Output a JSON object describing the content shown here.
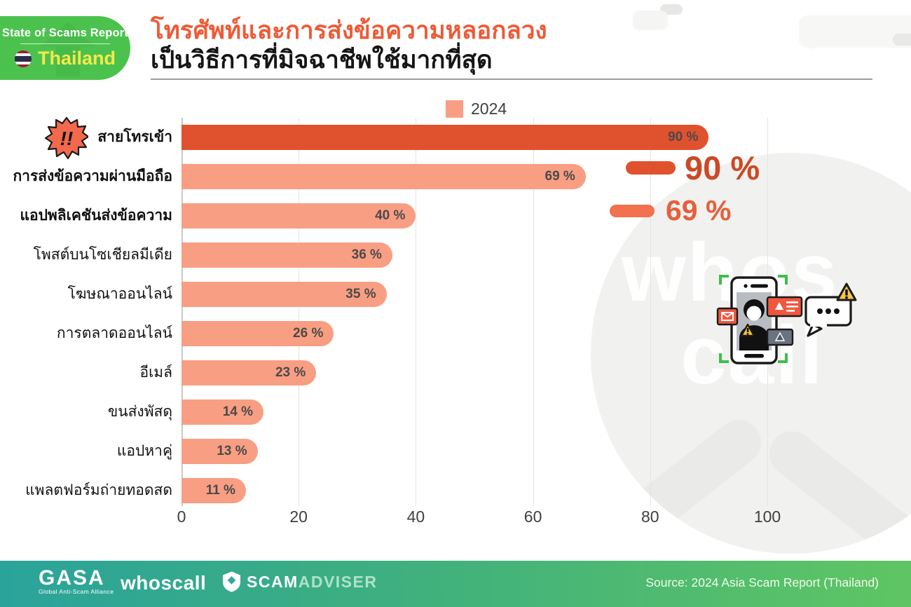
{
  "header": {
    "badge_line1": "State of Scams Report",
    "badge_country": "Thailand",
    "title_line1": "โทรศัพท์และการส่งข้อความหลอกลวง",
    "title_line2": "เป็นวิธีการที่มิจฉาชีพใช้มากที่สุด"
  },
  "alert_icon_text": "!!",
  "watermark": {
    "line1": "whos",
    "line2": "call"
  },
  "chart_data": {
    "type": "bar",
    "orientation": "horizontal",
    "title": "โทรศัพท์และการส่งข้อความหลอกลวง เป็นวิธีการที่มิจฉาชีพใช้มากที่สุด",
    "legend": [
      "2024"
    ],
    "legend_position": "top",
    "grid": true,
    "categories": [
      "สายโทรเข้า",
      "การส่งข้อความผ่านมือถือ",
      "แอปพลิเคชันส่งข้อความ",
      "โพสต์บนโซเชียลมีเดีย",
      "โฆษณาออนไลน์",
      "การตลาดออนไลน์",
      "อีเมล์",
      "ขนส่งพัสดุ",
      "แอปหาคู่",
      "แพลตฟอร์มถ่ายทอดสด"
    ],
    "values": [
      90,
      69,
      40,
      36,
      35,
      26,
      23,
      14,
      13,
      11
    ],
    "value_labels": [
      "90 %",
      "69 %",
      "40 %",
      "36 %",
      "35 %",
      "26 %",
      "23 %",
      "14 %",
      "13 %",
      "11 %"
    ],
    "xlim": [
      0,
      100
    ],
    "xticks": [
      "0",
      "20",
      "40",
      "60",
      "80",
      "100"
    ],
    "bar_color": "#F89E83",
    "highlight_color": "#E0512D"
  },
  "legend": {
    "label": "2024",
    "swatch_color": "#F89E83"
  },
  "callout": {
    "value1": "90 %",
    "value2": "69 %"
  },
  "footer": {
    "gasa_name": "GASA",
    "gasa_tagline": "Global Anti-Scam Alliance",
    "whoscall": "whoscall",
    "scamadviser_scam": "SCAM",
    "scamadviser_adviser": "ADVISER",
    "source": "Source: 2024 Asia Scam Report (Thailand)"
  }
}
